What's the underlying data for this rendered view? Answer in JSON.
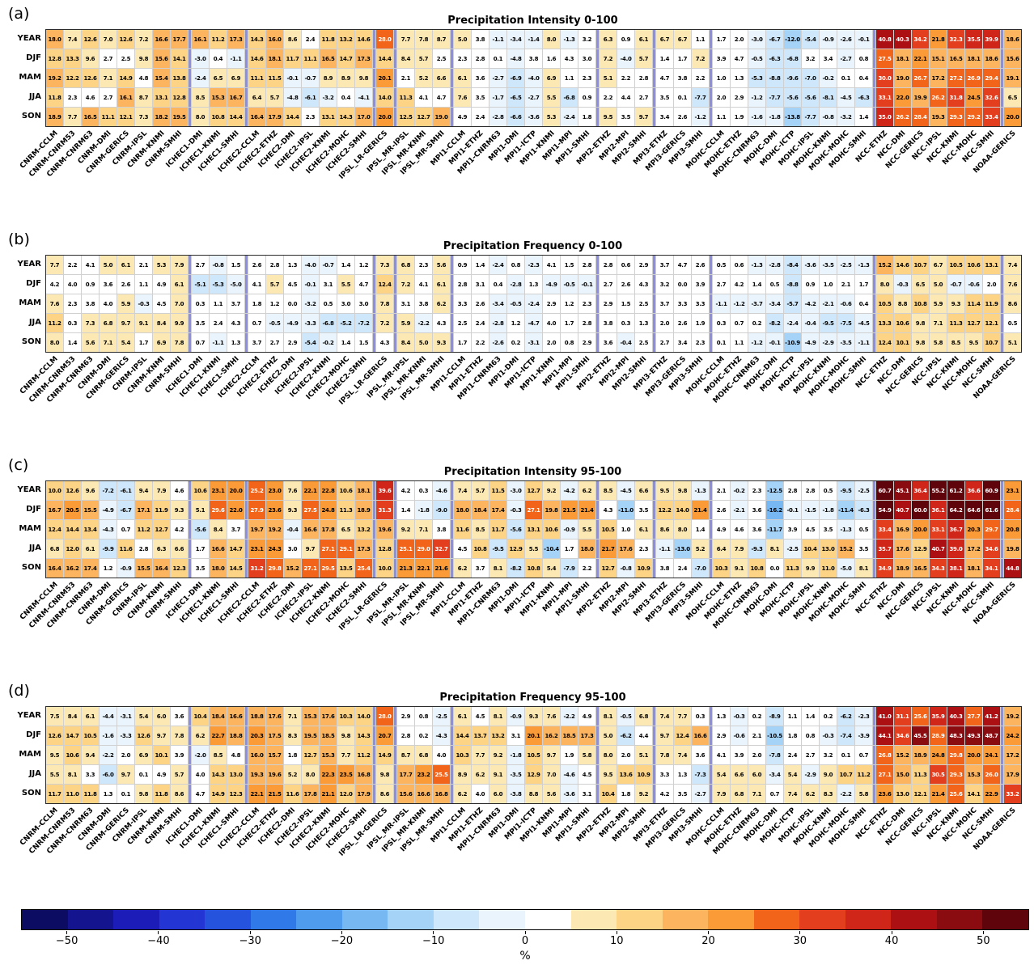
{
  "row_labels": [
    "YEAR",
    "DJF",
    "MAM",
    "JJA",
    "SON"
  ],
  "columns": [
    "CNRM-CCLM",
    "CNRM-CNRM53",
    "CNRM-CNRM63",
    "CNRM-DMI",
    "CNRM-GERICS",
    "CNRM-IPSL",
    "CNRM-KNMI",
    "CNRM-SMHI",
    "ICHEC1-DMI",
    "ICHEC1-KNMI",
    "ICHEC1-SMHI",
    "ICHEC2-CCLM",
    "ICHEC2-ETHZ",
    "ICHEC2-DMI",
    "ICHEC2-IPSL",
    "ICHEC2-KNMI",
    "ICHEC2-MOHC",
    "ICHEC2-SMHI",
    "IPSL_LR-GERICS",
    "IPSL_MR-IPSL",
    "IPSL_MR-KNMI",
    "IPSL_MR-SMHI",
    "MPI1-CCLM",
    "MPI1-ETHZ",
    "MPI1-CNRM63",
    "MPI1-DMI",
    "MPI1-ICTP",
    "MPI1-KNMI",
    "MPI1-MPI",
    "MPI1-SMHI",
    "MPI2-ETHZ",
    "MPI2-MPI",
    "MPI2-SMHI",
    "MPI3-ETHZ",
    "MPI3-GERICS",
    "MPI3-SMHI",
    "MOHC-CCLM",
    "MOHC-ETHZ",
    "MOHC-CNRM63",
    "MOHC-DMI",
    "MOHC-ICTP",
    "MOHC-IPSL",
    "MOHC-KNMI",
    "MOHC-MOHC",
    "MOHC-SMHI",
    "NCC-ETHZ",
    "NCC-DMI",
    "NCC-GERICS",
    "NCC-IPSL",
    "NCC-KNMI",
    "NCC-MOHC",
    "NCC-SMHI",
    "NOAA-GERICS"
  ],
  "group_sizes": [
    8,
    3,
    7,
    1,
    3,
    8,
    3,
    3,
    9,
    7,
    1
  ],
  "chart_data": [
    {
      "type": "heatmap",
      "panel_letter": "(a)",
      "title": "Precipitation Intensity 0-100",
      "rows": [
        "YEAR",
        "DJF",
        "MAM",
        "JJA",
        "SON"
      ],
      "values": [
        [
          18.0,
          7.4,
          12.6,
          7.0,
          12.6,
          7.2,
          16.6,
          17.7,
          16.1,
          11.2,
          17.3,
          14.3,
          16.0,
          8.6,
          2.4,
          11.8,
          13.2,
          14.6,
          28.0,
          7.7,
          7.8,
          8.7,
          5.0,
          3.8,
          -1.1,
          -3.4,
          -1.4,
          8.0,
          -1.3,
          3.2,
          6.3,
          0.9,
          6.1,
          6.7,
          6.7,
          1.1,
          1.7,
          2.0,
          -3.0,
          -6.7,
          -12.0,
          -5.4,
          -0.9,
          -2.6,
          -0.1,
          40.8,
          40.3,
          34.2,
          21.8,
          32.3,
          35.5,
          39.9,
          18.6
        ],
        [
          12.8,
          13.3,
          9.6,
          2.7,
          2.5,
          9.8,
          15.6,
          14.1,
          -3.0,
          0.4,
          -1.1,
          14.6,
          18.1,
          11.7,
          11.1,
          16.5,
          14.7,
          17.3,
          14.4,
          8.4,
          5.7,
          2.5,
          2.3,
          2.8,
          0.1,
          -4.8,
          3.8,
          1.6,
          4.3,
          3.0,
          7.2,
          -4.0,
          5.7,
          1.4,
          1.7,
          7.2,
          3.9,
          4.7,
          -0.5,
          -6.3,
          -6.8,
          3.2,
          3.4,
          -2.7,
          0.8,
          27.5,
          18.1,
          22.1,
          15.1,
          16.5,
          18.1,
          18.6,
          15.6
        ],
        [
          19.2,
          12.2,
          12.6,
          7.1,
          14.9,
          4.8,
          15.4,
          13.8,
          -2.4,
          6.5,
          6.9,
          11.1,
          11.5,
          -0.1,
          -0.7,
          8.9,
          8.9,
          9.8,
          20.1,
          2.1,
          5.2,
          6.6,
          6.1,
          3.6,
          -2.7,
          -6.9,
          -4.0,
          6.9,
          1.1,
          2.3,
          5.1,
          2.2,
          2.8,
          4.7,
          3.8,
          2.2,
          1.0,
          1.3,
          -5.3,
          -8.8,
          -9.6,
          -7.0,
          -0.2,
          0.1,
          0.4,
          30.0,
          19.0,
          26.7,
          17.2,
          27.2,
          26.9,
          29.4,
          19.1
        ],
        [
          11.8,
          2.3,
          4.6,
          2.7,
          16.1,
          8.7,
          13.1,
          12.8,
          8.5,
          15.3,
          16.7,
          6.4,
          5.7,
          -4.8,
          -6.1,
          -3.2,
          0.4,
          -4.1,
          14.0,
          11.3,
          4.1,
          4.7,
          7.6,
          3.5,
          -1.7,
          -6.5,
          -2.7,
          5.5,
          -6.8,
          0.9,
          2.2,
          4.4,
          2.7,
          3.5,
          0.1,
          -7.7,
          2.0,
          2.9,
          -1.2,
          -7.7,
          -5.6,
          -5.6,
          -8.1,
          -4.5,
          -6.3,
          33.1,
          22.0,
          19.9,
          26.2,
          31.8,
          24.5,
          32.6,
          6.5
        ],
        [
          18.9,
          7.7,
          16.5,
          11.1,
          12.1,
          7.3,
          18.2,
          19.5,
          8.0,
          10.8,
          14.4,
          16.4,
          17.9,
          14.4,
          2.3,
          13.1,
          14.3,
          17.0,
          20.0,
          12.5,
          12.7,
          19.0,
          4.9,
          2.4,
          -2.8,
          -6.6,
          -3.6,
          5.3,
          -2.4,
          1.8,
          9.5,
          3.5,
          9.7,
          3.4,
          2.6,
          -1.2,
          1.1,
          1.9,
          -1.6,
          -1.8,
          -13.8,
          -7.7,
          -0.8,
          -3.2,
          1.4,
          35.0,
          26.2,
          28.4,
          19.3,
          29.3,
          29.2,
          33.4,
          20.0
        ]
      ]
    },
    {
      "type": "heatmap",
      "panel_letter": "(b)",
      "title": "Precipitation Frequency 0-100",
      "rows": [
        "YEAR",
        "DJF",
        "MAM",
        "JJA",
        "SON"
      ],
      "values": [
        [
          7.7,
          2.2,
          4.1,
          5.0,
          6.1,
          2.1,
          5.3,
          7.9,
          2.7,
          -0.8,
          1.5,
          2.6,
          2.8,
          1.3,
          -4.0,
          -0.7,
          1.4,
          1.2,
          7.3,
          6.8,
          2.3,
          5.6,
          0.9,
          1.4,
          -2.4,
          0.8,
          -2.3,
          4.1,
          1.5,
          2.8,
          2.8,
          0.6,
          2.9,
          3.7,
          4.7,
          2.6,
          0.5,
          0.6,
          -1.3,
          -2.8,
          -8.4,
          -3.6,
          -3.5,
          -2.5,
          -1.3,
          15.2,
          14.6,
          10.7,
          6.7,
          10.5,
          10.6,
          13.1,
          7.4
        ],
        [
          4.2,
          4.0,
          0.9,
          3.6,
          2.6,
          1.1,
          4.9,
          6.1,
          -5.1,
          -5.3,
          -5.0,
          4.1,
          5.7,
          4.5,
          -0.1,
          3.1,
          5.5,
          4.7,
          12.4,
          7.2,
          4.1,
          6.1,
          2.8,
          3.1,
          0.4,
          -2.8,
          1.3,
          -4.9,
          -0.5,
          -0.1,
          2.7,
          2.6,
          4.3,
          3.2,
          0.0,
          3.9,
          2.7,
          4.2,
          1.4,
          0.5,
          -8.8,
          0.9,
          1.0,
          2.1,
          1.7,
          8.0,
          -0.3,
          6.5,
          5.0,
          -0.7,
          -0.6,
          2.0,
          7.6
        ],
        [
          7.6,
          2.3,
          3.8,
          4.0,
          5.9,
          -0.3,
          4.5,
          7.0,
          0.3,
          1.1,
          3.7,
          1.8,
          1.2,
          0.0,
          -3.2,
          0.5,
          3.0,
          3.0,
          7.8,
          3.1,
          3.8,
          6.2,
          3.3,
          2.6,
          -3.4,
          -0.5,
          -2.4,
          2.9,
          1.2,
          2.3,
          2.9,
          1.5,
          2.5,
          3.7,
          3.3,
          3.3,
          -1.1,
          -1.2,
          -3.7,
          -3.4,
          -5.7,
          -4.2,
          -2.1,
          -0.6,
          0.4,
          10.5,
          8.8,
          10.8,
          5.9,
          9.3,
          11.4,
          11.9,
          8.6
        ],
        [
          11.2,
          0.3,
          7.3,
          6.8,
          9.7,
          9.1,
          8.4,
          9.9,
          3.5,
          2.4,
          4.3,
          0.7,
          -0.5,
          -4.9,
          -3.3,
          -6.8,
          -5.2,
          -7.2,
          7.2,
          5.9,
          -2.2,
          4.3,
          2.5,
          2.4,
          -2.8,
          1.2,
          -4.7,
          4.0,
          1.7,
          2.8,
          3.8,
          0.3,
          1.3,
          2.0,
          2.6,
          1.9,
          0.3,
          0.7,
          0.2,
          -8.2,
          -2.4,
          -0.4,
          -9.5,
          -7.5,
          -4.5,
          13.3,
          10.6,
          9.8,
          7.1,
          11.3,
          12.7,
          12.1,
          0.5
        ],
        [
          8.0,
          1.4,
          5.6,
          7.1,
          5.4,
          1.7,
          6.9,
          7.8,
          0.7,
          -1.1,
          1.3,
          3.7,
          2.7,
          2.9,
          -5.4,
          -0.2,
          1.4,
          1.5,
          4.3,
          8.4,
          5.0,
          9.3,
          1.7,
          2.2,
          -2.6,
          0.2,
          -3.1,
          2.0,
          0.8,
          2.9,
          3.6,
          -0.4,
          2.5,
          2.7,
          3.4,
          2.3,
          0.1,
          1.1,
          -1.2,
          -0.1,
          -10.9,
          -4.9,
          -2.9,
          -3.5,
          -1.1,
          12.4,
          10.1,
          9.8,
          5.8,
          8.5,
          9.5,
          10.7,
          5.1
        ]
      ]
    },
    {
      "type": "heatmap",
      "panel_letter": "(c)",
      "title": "Precipitation Intensity 95-100",
      "rows": [
        "YEAR",
        "DJF",
        "MAM",
        "JJA",
        "SON"
      ],
      "values": [
        [
          10.0,
          12.6,
          9.6,
          -7.2,
          -6.1,
          9.4,
          7.9,
          4.6,
          10.6,
          23.1,
          20.0,
          25.2,
          23.0,
          7.6,
          22.1,
          22.8,
          10.6,
          18.1,
          39.6,
          4.2,
          0.3,
          -4.6,
          7.4,
          5.7,
          11.5,
          -3.0,
          12.7,
          9.2,
          -4.2,
          6.2,
          8.5,
          -4.5,
          6.6,
          9.5,
          9.8,
          -1.3,
          2.1,
          -0.2,
          2.3,
          -12.5,
          2.8,
          2.8,
          0.5,
          -9.5,
          -2.5,
          60.7,
          45.1,
          36.4,
          55.2,
          61.2,
          36.6,
          60.9,
          23.1
        ],
        [
          16.7,
          20.5,
          15.5,
          -4.9,
          -6.7,
          17.1,
          11.9,
          9.3,
          5.1,
          29.6,
          22.0,
          27.9,
          23.6,
          9.3,
          27.5,
          24.8,
          11.3,
          18.9,
          31.3,
          1.4,
          -1.8,
          -9.0,
          18.0,
          18.4,
          17.4,
          -0.3,
          27.1,
          19.8,
          21.5,
          21.4,
          4.3,
          -11.0,
          3.5,
          12.2,
          14.0,
          21.4,
          2.6,
          -2.1,
          3.6,
          -16.2,
          -0.1,
          -1.5,
          -1.8,
          -11.4,
          -6.3,
          54.9,
          40.7,
          60.0,
          36.1,
          64.2,
          64.6,
          61.6,
          28.4
        ],
        [
          12.4,
          14.4,
          13.4,
          -4.3,
          0.7,
          11.2,
          12.7,
          4.2,
          -5.6,
          8.4,
          3.7,
          19.7,
          19.2,
          -0.4,
          16.6,
          17.8,
          6.5,
          13.2,
          19.6,
          9.2,
          7.1,
          3.8,
          11.6,
          8.5,
          11.7,
          -5.6,
          13.1,
          10.6,
          -0.9,
          5.5,
          10.5,
          1.0,
          6.1,
          8.6,
          8.0,
          1.4,
          4.9,
          4.6,
          3.6,
          -11.7,
          3.9,
          4.5,
          3.5,
          -1.3,
          0.5,
          33.4,
          16.9,
          20.0,
          33.1,
          36.7,
          20.3,
          29.7,
          20.8
        ],
        [
          6.8,
          12.0,
          6.1,
          -9.9,
          11.6,
          2.8,
          6.3,
          6.6,
          1.7,
          16.6,
          14.7,
          23.1,
          24.3,
          3.0,
          9.7,
          27.1,
          29.1,
          17.3,
          12.8,
          25.1,
          29.0,
          32.7,
          4.5,
          10.8,
          -9.5,
          12.9,
          5.5,
          -10.4,
          1.7,
          18.0,
          21.7,
          17.6,
          2.3,
          -1.1,
          -13.0,
          5.2,
          6.4,
          7.9,
          -9.3,
          8.1,
          -2.5,
          10.4,
          13.0,
          15.2,
          3.5,
          35.7,
          17.6,
          12.9,
          40.7,
          39.0,
          17.2,
          34.6,
          19.8
        ],
        [
          16.4,
          16.2,
          17.4,
          1.2,
          -0.9,
          15.5,
          16.4,
          12.3,
          3.5,
          18.0,
          14.5,
          31.2,
          29.8,
          15.2,
          27.1,
          29.5,
          13.5,
          25.4,
          10.0,
          21.3,
          22.1,
          21.6,
          6.2,
          3.7,
          8.1,
          -8.2,
          10.8,
          5.4,
          -7.9,
          2.2,
          12.7,
          -0.8,
          10.9,
          3.8,
          2.4,
          -7.0,
          10.3,
          9.1,
          10.8,
          0.0,
          11.3,
          9.9,
          11.0,
          -5.0,
          8.1,
          34.9,
          18.9,
          16.5,
          34.3,
          38.1,
          18.1,
          34.1,
          44.8
        ]
      ]
    },
    {
      "type": "heatmap",
      "panel_letter": "(d)",
      "title": "Precipitation Frequency 95-100",
      "rows": [
        "YEAR",
        "DJF",
        "MAM",
        "JJA",
        "SON"
      ],
      "values": [
        [
          7.5,
          8.4,
          6.1,
          -4.4,
          -3.1,
          5.4,
          6.0,
          3.6,
          10.4,
          18.4,
          16.6,
          18.8,
          17.6,
          7.1,
          15.3,
          17.6,
          10.3,
          14.0,
          28.0,
          2.9,
          0.8,
          -2.5,
          6.1,
          4.5,
          8.1,
          -0.9,
          9.3,
          7.6,
          -2.2,
          4.9,
          8.1,
          -0.5,
          6.8,
          7.4,
          7.7,
          0.3,
          1.3,
          -0.3,
          0.2,
          -8.9,
          1.1,
          1.4,
          0.2,
          -6.2,
          -2.3,
          41.0,
          31.1,
          25.6,
          35.9,
          40.3,
          27.7,
          41.2,
          19.2
        ],
        [
          12.6,
          14.7,
          10.5,
          -1.6,
          -3.3,
          12.6,
          9.7,
          7.8,
          6.2,
          22.7,
          18.8,
          20.3,
          17.5,
          8.3,
          19.5,
          18.5,
          9.8,
          14.3,
          20.7,
          2.8,
          0.2,
          -4.3,
          14.4,
          13.7,
          13.2,
          3.1,
          20.1,
          16.2,
          18.5,
          17.3,
          5.0,
          -6.2,
          4.4,
          9.7,
          12.4,
          16.6,
          2.9,
          -0.6,
          2.1,
          -10.5,
          1.8,
          0.8,
          -0.3,
          -7.4,
          -3.9,
          44.1,
          34.6,
          45.5,
          28.9,
          48.3,
          49.3,
          48.7,
          24.2
        ],
        [
          9.5,
          10.6,
          9.4,
          -2.2,
          2.0,
          6.9,
          10.1,
          3.9,
          -2.0,
          8.5,
          4.8,
          16.0,
          15.7,
          1.8,
          12.7,
          15.3,
          7.7,
          11.2,
          14.9,
          8.7,
          6.8,
          4.0,
          10.3,
          7.7,
          9.2,
          -1.8,
          10.5,
          9.7,
          1.9,
          5.8,
          8.0,
          2.0,
          5.1,
          7.8,
          7.4,
          3.6,
          4.1,
          3.9,
          2.0,
          -7.8,
          2.4,
          2.7,
          3.2,
          0.1,
          0.7,
          26.8,
          15.2,
          18.9,
          24.8,
          29.8,
          20.0,
          24.1,
          17.2
        ],
        [
          5.5,
          8.1,
          3.3,
          -6.0,
          9.7,
          0.1,
          4.9,
          5.7,
          4.0,
          14.3,
          13.0,
          19.3,
          19.6,
          5.2,
          8.0,
          22.3,
          23.5,
          16.8,
          9.8,
          17.7,
          23.2,
          25.5,
          8.9,
          6.2,
          9.1,
          -3.5,
          12.9,
          7.0,
          -4.6,
          4.5,
          9.5,
          13.6,
          10.9,
          3.3,
          1.3,
          -7.3,
          5.4,
          6.6,
          6.0,
          -3.4,
          5.4,
          -2.9,
          9.0,
          10.7,
          11.2,
          27.1,
          15.0,
          11.3,
          30.5,
          29.3,
          15.3,
          26.0,
          17.9
        ],
        [
          11.7,
          11.0,
          11.8,
          1.3,
          0.1,
          9.8,
          11.8,
          8.6,
          4.7,
          14.9,
          12.3,
          22.1,
          21.5,
          11.6,
          17.8,
          21.1,
          12.0,
          17.9,
          8.6,
          15.6,
          16.6,
          16.8,
          6.2,
          4.0,
          6.0,
          -3.8,
          8.8,
          5.6,
          -3.6,
          3.1,
          10.4,
          1.8,
          9.2,
          4.2,
          3.5,
          -2.7,
          7.9,
          6.8,
          7.1,
          0.7,
          7.4,
          6.2,
          8.3,
          -2.2,
          5.8,
          23.6,
          13.0,
          12.1,
          21.4,
          25.6,
          14.1,
          22.9,
          33.2
        ]
      ]
    }
  ],
  "colorbar": {
    "label": "%",
    "tick_labels": [
      "−50",
      "−40",
      "−30",
      "−20",
      "−10",
      "0",
      "10",
      "20",
      "30",
      "40",
      "50"
    ],
    "tick_values": [
      -50,
      -40,
      -30,
      -20,
      -10,
      0,
      10,
      20,
      30,
      40,
      50
    ],
    "vmin": -55,
    "vmax": 55,
    "step": 5,
    "colors": [
      "#0c0c63",
      "#14148f",
      "#1c1cb8",
      "#2335d2",
      "#2653dd",
      "#2f7ae8",
      "#4f9bee",
      "#77b8f2",
      "#a5d2f7",
      "#cfe7fa",
      "#eaf4fc",
      "#ffffff",
      "#fce8b2",
      "#fdd386",
      "#fcb45f",
      "#fa9b37",
      "#f26419",
      "#e33f1e",
      "#d02619",
      "#ad1012",
      "#8a0b10",
      "#5e040a"
    ]
  },
  "styles": {
    "separator_color": "#8d8de2",
    "grid_line_color": "#d0d0d0",
    "frame_color": "#2b2b2b"
  }
}
